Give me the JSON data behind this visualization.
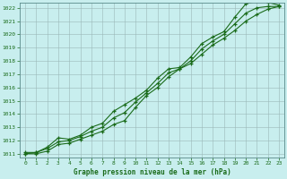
{
  "title": "Graphe pression niveau de la mer (hPa)",
  "x": [
    0,
    1,
    2,
    3,
    4,
    5,
    6,
    7,
    8,
    9,
    10,
    11,
    12,
    13,
    14,
    15,
    16,
    17,
    18,
    19,
    20,
    21,
    22,
    23
  ],
  "line1": [
    1011.1,
    1011.1,
    1011.5,
    1012.2,
    1012.1,
    1012.4,
    1013.0,
    1013.3,
    1014.2,
    1014.7,
    1015.2,
    1015.8,
    1016.7,
    1017.4,
    1017.5,
    1018.3,
    1019.3,
    1019.8,
    1020.2,
    1021.3,
    1022.3,
    1022.5,
    1022.4,
    1022.2
  ],
  "line2": [
    1011.0,
    1011.0,
    1011.2,
    1011.7,
    1011.8,
    1012.1,
    1012.4,
    1012.7,
    1013.2,
    1013.5,
    1014.5,
    1015.4,
    1016.0,
    1016.8,
    1017.4,
    1017.8,
    1018.5,
    1019.2,
    1019.7,
    1020.3,
    1021.0,
    1021.5,
    1021.9,
    1022.1
  ],
  "line3": [
    1011.0,
    1011.1,
    1011.4,
    1011.9,
    1012.0,
    1012.3,
    1012.7,
    1013.0,
    1013.7,
    1014.1,
    1014.9,
    1015.6,
    1016.3,
    1017.1,
    1017.4,
    1018.0,
    1018.9,
    1019.5,
    1020.0,
    1020.8,
    1021.6,
    1022.0,
    1022.1,
    1022.1
  ],
  "ylim": [
    1011,
    1022
  ],
  "xlim": [
    0,
    23
  ],
  "yticks": [
    1011,
    1012,
    1013,
    1014,
    1015,
    1016,
    1017,
    1018,
    1019,
    1020,
    1021,
    1022
  ],
  "xticks": [
    0,
    1,
    2,
    3,
    4,
    5,
    6,
    7,
    8,
    9,
    10,
    11,
    12,
    13,
    14,
    15,
    16,
    17,
    18,
    19,
    20,
    21,
    22,
    23
  ],
  "line_color": "#1a6b1a",
  "bg_color": "#c8eeee",
  "grid_color": "#b0c8c8",
  "title_color": "#1a6b1a",
  "label_color": "#1a6b1a"
}
